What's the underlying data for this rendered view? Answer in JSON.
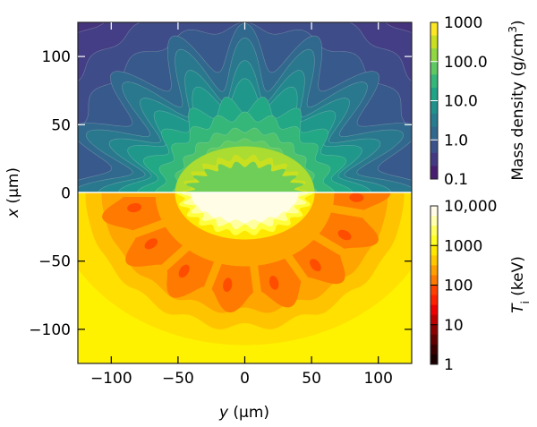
{
  "chart_data": {
    "type": "heatmap",
    "title": "",
    "xlabel": "y (µm)",
    "xlabel_parts": {
      "symbol": "y",
      "unit": " (µm)"
    },
    "ylabel": "x (µm)",
    "ylabel_parts": {
      "symbol": "x",
      "unit": " (µm)"
    },
    "xlim": [
      -125,
      125
    ],
    "ylim": [
      -125,
      125
    ],
    "xticks": [
      -100,
      -50,
      0,
      50,
      100
    ],
    "xtick_labels": [
      "−100",
      "−50",
      "0",
      "50",
      "100"
    ],
    "yticks": [
      100,
      50,
      0,
      -50,
      -100
    ],
    "ytick_labels": [
      "100",
      "50",
      "0",
      "−50",
      "−100"
    ],
    "panels": [
      {
        "name": "Mass density",
        "region": "upper half (x > 0)",
        "colormap": "viridis",
        "scale": "log"
      },
      {
        "name": "Ti",
        "region": "lower half (x < 0)",
        "colormap": "hot",
        "scale": "log"
      }
    ],
    "colorbars": [
      {
        "label": "Mass density (g/cm3)",
        "label_parts": {
          "text": "Mass density (g/cm",
          "sup": "3",
          "end": ")"
        },
        "range": [
          0.1,
          1000
        ],
        "tick_values": [
          1000,
          100,
          10,
          1,
          0.1
        ],
        "tick_labels": [
          "1000",
          "100.0",
          "10.0",
          "1.0",
          "0.1"
        ],
        "colors": [
          "#fde725",
          "#c8e020",
          "#90d743",
          "#5ec962",
          "#35b779",
          "#20a486",
          "#21918c",
          "#287c8e",
          "#31688e",
          "#3b528b",
          "#443983",
          "#481f70"
        ]
      },
      {
        "label": "Ti (keV)",
        "label_parts": {
          "symbol": "T",
          "sub": "i",
          "unit": " (keV)"
        },
        "range": [
          1,
          10000
        ],
        "tick_values": [
          10000,
          1000,
          100,
          10,
          1
        ],
        "tick_labels": [
          "10,000",
          "1000",
          "100",
          "10",
          "1"
        ],
        "colors": [
          "#fffbe8",
          "#ffffb0",
          "#ffff60",
          "#ffff20",
          "#ffe800",
          "#ffc800",
          "#ffa000",
          "#ff7800",
          "#ff4000",
          "#ff2000",
          "#ee0000",
          "#c00000",
          "#8a0000",
          "#600000",
          "#3a0000",
          "#1a0000"
        ]
      }
    ]
  }
}
